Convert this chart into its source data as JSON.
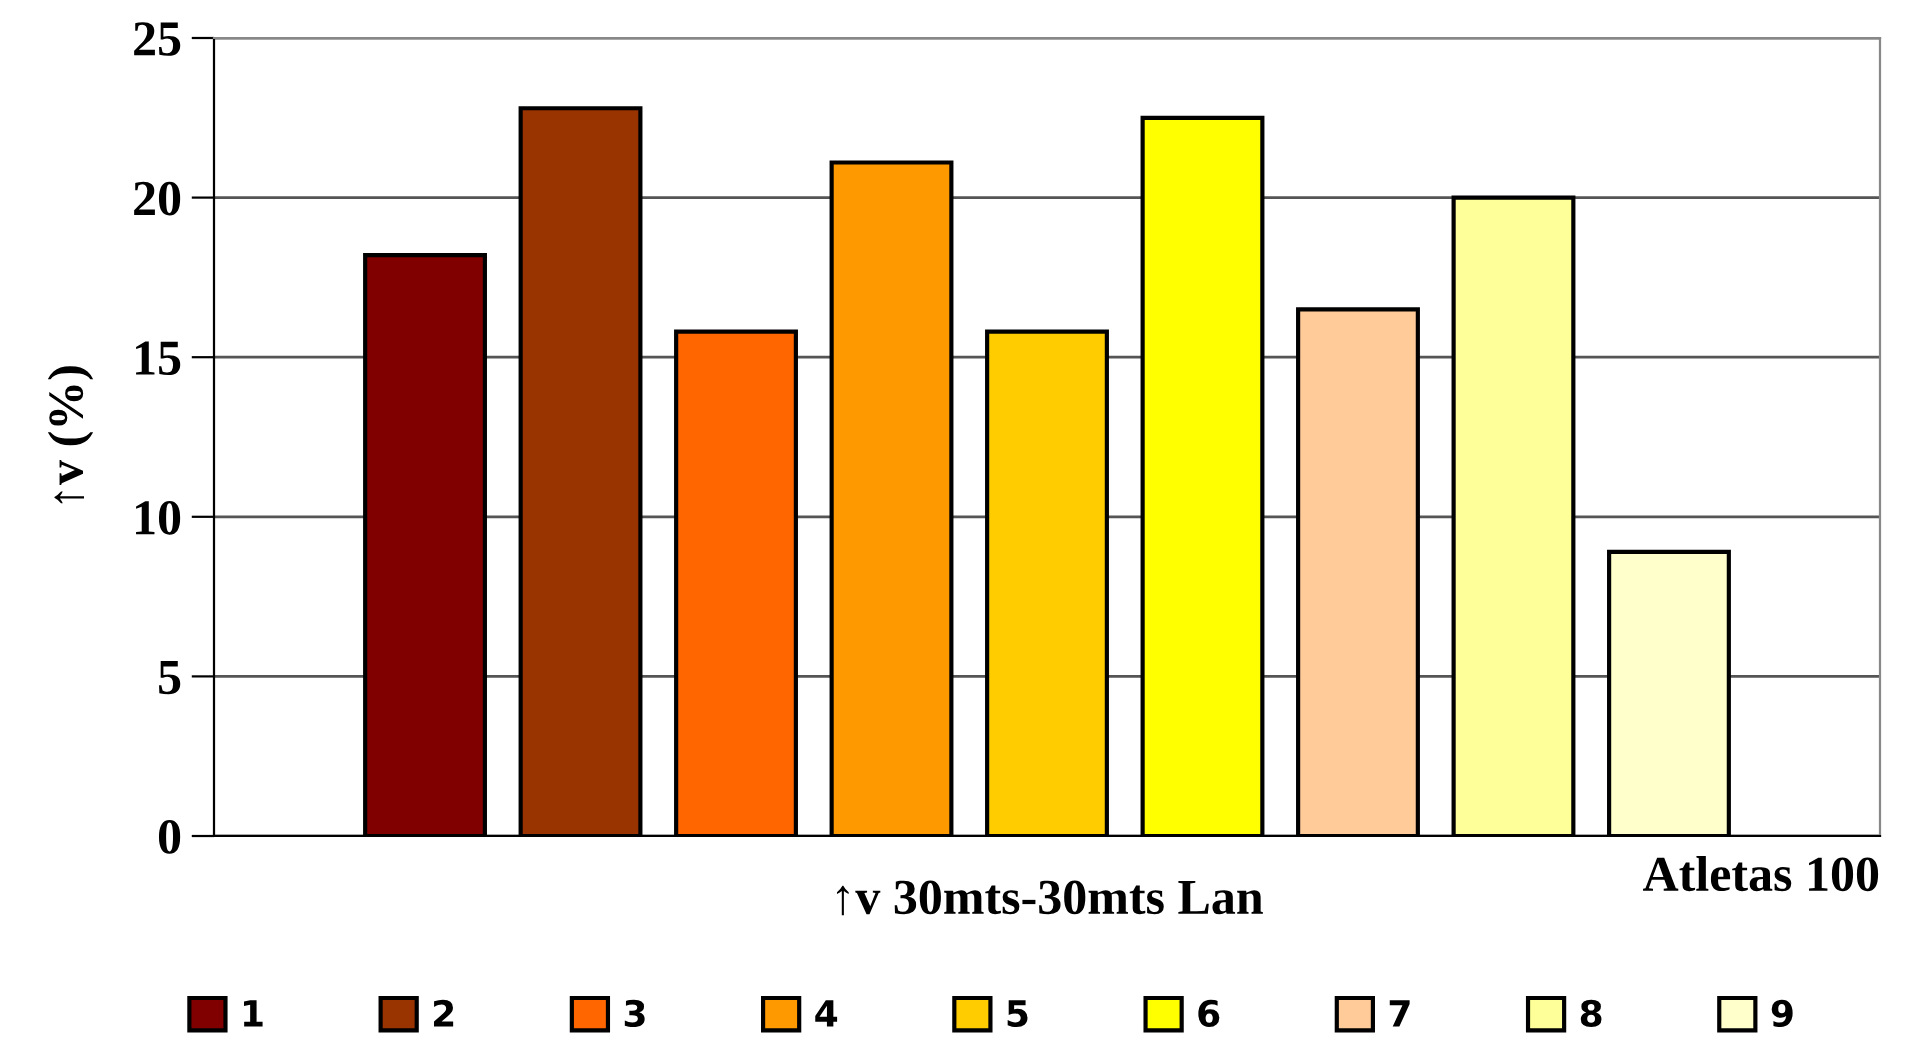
{
  "chart_data": {
    "type": "bar",
    "categories": [
      null
    ],
    "xlabel": "↑v 30mts-30mts Lan",
    "ylabel": "↑v (%)",
    "ylim": [
      0,
      25
    ],
    "yticks": [
      0,
      5,
      10,
      15,
      20,
      25
    ],
    "grid": "y",
    "legend": "bottom",
    "annotations": [
      "Atletas 100"
    ],
    "series": [
      {
        "name": "1",
        "color": "#800000",
        "values": [
          18.2
        ]
      },
      {
        "name": "2",
        "color": "#993300",
        "values": [
          22.8
        ]
      },
      {
        "name": "3",
        "color": "#ff6600",
        "values": [
          15.8
        ]
      },
      {
        "name": "4",
        "color": "#ff9900",
        "values": [
          21.1
        ]
      },
      {
        "name": "5",
        "color": "#ffcc00",
        "values": [
          15.8
        ]
      },
      {
        "name": "6",
        "color": "#ffff00",
        "values": [
          22.5
        ]
      },
      {
        "name": "7",
        "color": "#ffcc99",
        "values": [
          16.5
        ]
      },
      {
        "name": "8",
        "color": "#ffff99",
        "values": [
          20.0
        ]
      },
      {
        "name": "9",
        "color": "#ffffcc",
        "values": [
          8.9
        ]
      }
    ]
  }
}
